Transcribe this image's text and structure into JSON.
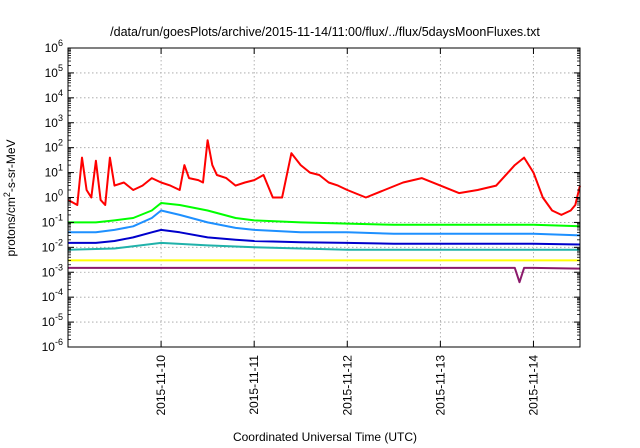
{
  "chart_data": {
    "type": "line",
    "title": "/data/run/goesPlots/archive/2015-11-14/11:00/flux/../flux/5daysMoonFluxes.txt",
    "xlabel": "Coordinated Universal Time (UTC)",
    "ylabel": "protons/cm²-s-sr-MeV",
    "yscale": "log",
    "ylim": [
      1e-06,
      1000000.0
    ],
    "xlim": [
      0,
      5.5
    ],
    "x_unit": "days since 2015-11-09 00:00 UTC",
    "grid": true,
    "legend": "none",
    "yticks": [
      {
        "base": "10",
        "exp": "-6"
      },
      {
        "base": "10",
        "exp": "-5"
      },
      {
        "base": "10",
        "exp": "-4"
      },
      {
        "base": "10",
        "exp": "-3"
      },
      {
        "base": "10",
        "exp": "-2"
      },
      {
        "base": "10",
        "exp": "-1"
      },
      {
        "base": "10",
        "exp": "0"
      },
      {
        "base": "10",
        "exp": "1"
      },
      {
        "base": "10",
        "exp": "2"
      },
      {
        "base": "10",
        "exp": "3"
      },
      {
        "base": "10",
        "exp": "4"
      },
      {
        "base": "10",
        "exp": "5"
      },
      {
        "base": "10",
        "exp": "6"
      }
    ],
    "xticks": [
      {
        "label": "2015-11-10",
        "x": 1
      },
      {
        "label": "2015-11-11",
        "x": 2
      },
      {
        "label": "2015-11-12",
        "x": 3
      },
      {
        "label": "2015-11-13",
        "x": 4
      },
      {
        "label": "2015-11-14",
        "x": 5
      }
    ],
    "series": [
      {
        "color": "#ff0000",
        "x": [
          0,
          0.1,
          0.15,
          0.2,
          0.25,
          0.3,
          0.35,
          0.4,
          0.45,
          0.5,
          0.6,
          0.7,
          0.8,
          0.9,
          1.0,
          1.1,
          1.2,
          1.25,
          1.3,
          1.4,
          1.45,
          1.5,
          1.55,
          1.6,
          1.7,
          1.8,
          1.9,
          2.0,
          2.1,
          2.2,
          2.3,
          2.4,
          2.5,
          2.6,
          2.7,
          2.8,
          2.9,
          3.0,
          3.2,
          3.4,
          3.6,
          3.8,
          4.0,
          4.2,
          4.4,
          4.6,
          4.8,
          4.9,
          5.0,
          5.1,
          5.2,
          5.3,
          5.4,
          5.45,
          5.5
        ],
        "y": [
          0.8,
          0.5,
          40,
          2,
          1,
          30,
          0.8,
          0.5,
          40,
          3,
          4,
          2,
          3,
          6,
          4,
          3,
          2,
          20,
          6,
          5,
          4,
          200,
          20,
          8,
          6,
          3,
          4,
          5,
          8,
          1,
          1,
          60,
          20,
          10,
          8,
          4,
          3,
          2,
          1,
          2,
          4,
          6,
          3,
          1.5,
          2,
          3,
          20,
          40,
          10,
          1,
          0.3,
          0.2,
          0.3,
          0.5,
          3
        ]
      },
      {
        "color": "#00ff00",
        "x": [
          0,
          0.3,
          0.5,
          0.7,
          0.9,
          1.0,
          1.2,
          1.5,
          1.8,
          2.0,
          2.5,
          3.0,
          3.5,
          4.0,
          4.5,
          5.0,
          5.5
        ],
        "y": [
          0.1,
          0.1,
          0.12,
          0.15,
          0.3,
          0.6,
          0.5,
          0.3,
          0.15,
          0.12,
          0.1,
          0.09,
          0.08,
          0.08,
          0.08,
          0.08,
          0.07
        ]
      },
      {
        "color": "#1e90ff",
        "x": [
          0,
          0.3,
          0.5,
          0.7,
          0.9,
          1.0,
          1.2,
          1.5,
          1.8,
          2.0,
          2.5,
          3.0,
          3.5,
          4.0,
          4.5,
          5.0,
          5.5
        ],
        "y": [
          0.04,
          0.04,
          0.05,
          0.07,
          0.15,
          0.3,
          0.2,
          0.1,
          0.06,
          0.05,
          0.04,
          0.04,
          0.035,
          0.035,
          0.035,
          0.035,
          0.03
        ]
      },
      {
        "color": "#0000cc",
        "x": [
          0,
          0.3,
          0.5,
          0.7,
          0.9,
          1.0,
          1.2,
          1.5,
          1.8,
          2.0,
          2.5,
          3.0,
          3.5,
          4.0,
          4.5,
          5.0,
          5.5
        ],
        "y": [
          0.015,
          0.015,
          0.018,
          0.025,
          0.04,
          0.05,
          0.04,
          0.025,
          0.02,
          0.018,
          0.016,
          0.015,
          0.014,
          0.014,
          0.014,
          0.014,
          0.013
        ]
      },
      {
        "color": "#20b2aa",
        "x": [
          0,
          0.5,
          1.0,
          1.5,
          2.0,
          2.5,
          3.0,
          3.5,
          4.0,
          4.5,
          5.0,
          5.5
        ],
        "y": [
          0.008,
          0.009,
          0.015,
          0.012,
          0.01,
          0.009,
          0.008,
          0.008,
          0.008,
          0.008,
          0.008,
          0.008
        ]
      },
      {
        "color": "#ffff00",
        "x": [
          0,
          1,
          2,
          3,
          4,
          5,
          5.5
        ],
        "y": [
          0.003,
          0.003,
          0.003,
          0.003,
          0.003,
          0.003,
          0.003
        ]
      },
      {
        "color": "#8b1a6b",
        "x": [
          0,
          1,
          2,
          3,
          4,
          4.8,
          4.85,
          4.9,
          5,
          5.5
        ],
        "y": [
          0.0015,
          0.0015,
          0.0015,
          0.0015,
          0.0015,
          0.0015,
          0.0004,
          0.0015,
          0.0015,
          0.0014
        ]
      }
    ]
  }
}
